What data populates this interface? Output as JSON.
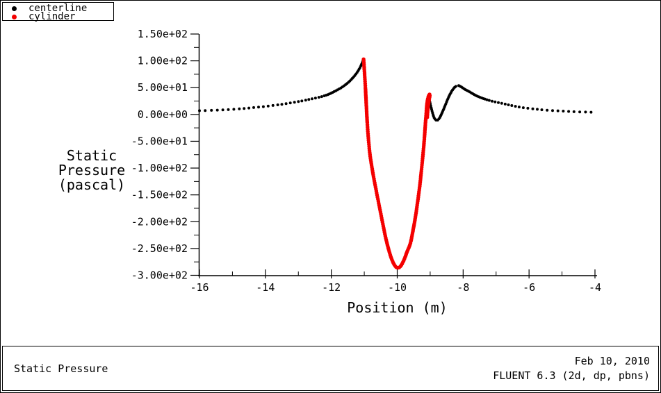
{
  "legend": {
    "items": [
      {
        "label": "centerline",
        "color": "#000000"
      },
      {
        "label": "cylinder",
        "color": "#f40000"
      }
    ]
  },
  "footer": {
    "title": "Static Pressure",
    "date": "Feb 10, 2010",
    "app": "FLUENT 6.3 (2d, dp, pbns)"
  },
  "chart_data": {
    "type": "scatter",
    "title": "Static Pressure",
    "xlabel": "Position (m)",
    "ylabel": "Static Pressure (pascal)",
    "ylabel_lines": [
      "Static",
      "Pressure",
      "(pascal)"
    ],
    "xlim": [
      -16,
      -4
    ],
    "ylim": [
      -300,
      150
    ],
    "x_major_ticks": [
      -16,
      -14,
      -12,
      -10,
      -8,
      -6,
      -4
    ],
    "x_tick_labels": [
      "-16",
      "-14",
      "-12",
      "-10",
      "-8",
      "-6",
      "-4"
    ],
    "x_minor_step": 1,
    "y_major_ticks": [
      150,
      100,
      50,
      0,
      -50,
      -100,
      -150,
      -200,
      -250,
      -300
    ],
    "y_tick_labels": [
      "1.50e+02",
      "1.00e+02",
      "5.00e+01",
      "0.00e+00",
      "-5.00e+01",
      "-1.00e+02",
      "-1.50e+02",
      "-2.00e+02",
      "-2.50e+02",
      "-3.00e+02"
    ],
    "y_minor_step": 25,
    "grid": false,
    "legend_position": "top-left",
    "axis_color": "#000000",
    "series": [
      {
        "name": "centerline",
        "color": "#000000",
        "marker": "dot",
        "render": "adaptive-dots",
        "segments": [
          [
            [
              -16.0,
              7
            ],
            [
              -15.5,
              8
            ],
            [
              -15.0,
              9.5
            ],
            [
              -14.5,
              12
            ],
            [
              -14.0,
              15
            ],
            [
              -13.5,
              19
            ],
            [
              -13.0,
              24
            ],
            [
              -12.6,
              29
            ],
            [
              -12.2,
              35
            ],
            [
              -11.9,
              43
            ],
            [
              -11.6,
              54
            ],
            [
              -11.35,
              68
            ],
            [
              -11.15,
              85
            ],
            [
              -11.02,
              103
            ]
          ],
          [
            [
              -9.02,
              26
            ],
            [
              -8.95,
              8
            ],
            [
              -8.88,
              -6
            ],
            [
              -8.8,
              -11
            ],
            [
              -8.72,
              -7
            ],
            [
              -8.64,
              3
            ],
            [
              -8.55,
              16
            ],
            [
              -8.45,
              31
            ],
            [
              -8.35,
              43
            ],
            [
              -8.25,
              51
            ],
            [
              -8.15,
              54
            ],
            [
              -8.05,
              51
            ],
            [
              -7.95,
              47
            ],
            [
              -7.8,
              42
            ],
            [
              -7.6,
              35
            ],
            [
              -7.4,
              30
            ],
            [
              -7.2,
              26
            ],
            [
              -7.0,
              23
            ],
            [
              -6.7,
              19
            ],
            [
              -6.4,
              15
            ],
            [
              -6.1,
              12
            ],
            [
              -5.8,
              10
            ],
            [
              -5.5,
              8
            ],
            [
              -5.2,
              7
            ],
            [
              -4.9,
              6
            ],
            [
              -4.6,
              5
            ],
            [
              -4.3,
              4.5
            ],
            [
              -4.0,
              4
            ]
          ]
        ]
      },
      {
        "name": "cylinder",
        "color": "#f40000",
        "marker": "dot",
        "render": "continuous-dots",
        "segments": [
          [
            [
              -11.02,
              103
            ],
            [
              -11.0,
              85
            ],
            [
              -10.97,
              55
            ],
            [
              -10.94,
              20
            ],
            [
              -10.91,
              -15
            ],
            [
              -10.87,
              -48
            ],
            [
              -10.82,
              -78
            ],
            [
              -10.75,
              -105
            ],
            [
              -10.66,
              -135
            ],
            [
              -10.56,
              -166
            ],
            [
              -10.46,
              -197
            ],
            [
              -10.36,
              -227
            ],
            [
              -10.26,
              -252
            ],
            [
              -10.16,
              -271
            ],
            [
              -10.06,
              -283
            ],
            [
              -9.98,
              -286
            ],
            [
              -9.9,
              -283
            ],
            [
              -9.8,
              -272
            ],
            [
              -9.7,
              -256
            ],
            [
              -9.6,
              -240
            ],
            [
              -9.52,
              -216
            ],
            [
              -9.45,
              -192
            ],
            [
              -9.38,
              -163
            ],
            [
              -9.32,
              -135
            ],
            [
              -9.27,
              -107
            ],
            [
              -9.22,
              -76
            ],
            [
              -9.18,
              -48
            ],
            [
              -9.15,
              -22
            ],
            [
              -9.12,
              2
            ],
            [
              -9.1,
              18
            ],
            [
              -9.07,
              30
            ],
            [
              -9.03,
              37
            ],
            [
              -9.01,
              36
            ],
            [
              -9.03,
              28
            ],
            [
              -9.06,
              16
            ],
            [
              -9.08,
              3
            ],
            [
              -9.09,
              -6
            ]
          ]
        ]
      }
    ]
  }
}
